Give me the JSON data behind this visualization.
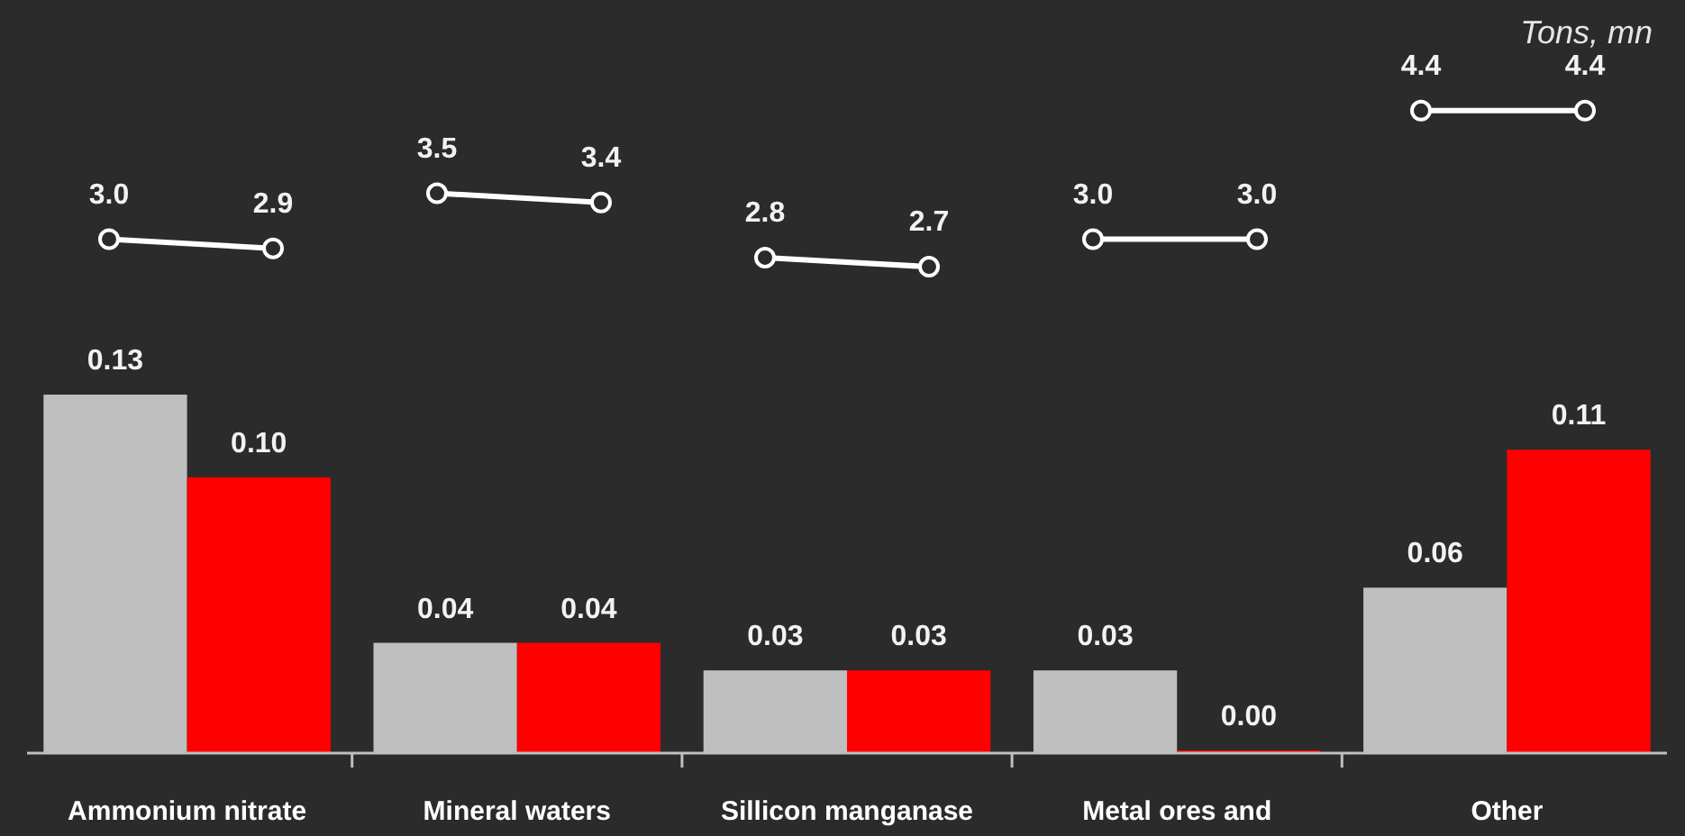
{
  "chart_data": [
    {
      "type": "bar",
      "categories": [
        "Ammonium nitrate",
        "Mineral waters",
        "Sillicon manganase",
        "Metal ores and",
        "Other"
      ],
      "series": [
        {
          "color": "#bfbfbf",
          "values": [
            0.13,
            0.04,
            0.03,
            0.03,
            0.06
          ],
          "value_labels": [
            "0.13",
            "0.04",
            "0.03",
            "0.03",
            "0.06"
          ]
        },
        {
          "color": "#ff0000",
          "values": [
            0.1,
            0.04,
            0.03,
            0.0,
            0.11
          ],
          "value_labels": [
            "0.10",
            "0.04",
            "0.03",
            "0.00",
            "0.11"
          ]
        }
      ],
      "tick_labels": "x",
      "annotations": [
        "Tons, mn"
      ]
    },
    {
      "type": "line",
      "categories": [
        null,
        null,
        null,
        null,
        null,
        null,
        null,
        null,
        null,
        null
      ],
      "series": [
        {
          "color": "#ffffff",
          "values": [
            3.0,
            2.9,
            null,
            null,
            null,
            null,
            null,
            null,
            null,
            null
          ],
          "value_labels": [
            "3.0",
            "2.9",
            null,
            null,
            null,
            null,
            null,
            null,
            null,
            null
          ]
        },
        {
          "color": "#ffffff",
          "values": [
            null,
            null,
            3.5,
            3.4,
            null,
            null,
            null,
            null,
            null,
            null
          ],
          "value_labels": [
            null,
            null,
            "3.5",
            "3.4",
            null,
            null,
            null,
            null,
            null,
            null
          ]
        },
        {
          "color": "#ffffff",
          "values": [
            null,
            null,
            null,
            null,
            2.8,
            2.7,
            null,
            null,
            null,
            null
          ],
          "value_labels": [
            null,
            null,
            null,
            null,
            "2.8",
            "2.7",
            null,
            null,
            null,
            null
          ]
        },
        {
          "color": "#ffffff",
          "values": [
            null,
            null,
            null,
            null,
            null,
            null,
            3.0,
            3.0,
            null,
            null
          ],
          "value_labels": [
            null,
            null,
            null,
            null,
            null,
            null,
            "3.0",
            "3.0",
            null,
            null
          ]
        },
        {
          "color": "#ffffff",
          "values": [
            null,
            null,
            null,
            null,
            null,
            null,
            null,
            null,
            4.4,
            4.4
          ],
          "value_labels": [
            null,
            null,
            null,
            null,
            null,
            null,
            null,
            null,
            "4.4",
            "4.4"
          ]
        }
      ],
      "marker": "circle",
      "tick_labels": false
    }
  ]
}
